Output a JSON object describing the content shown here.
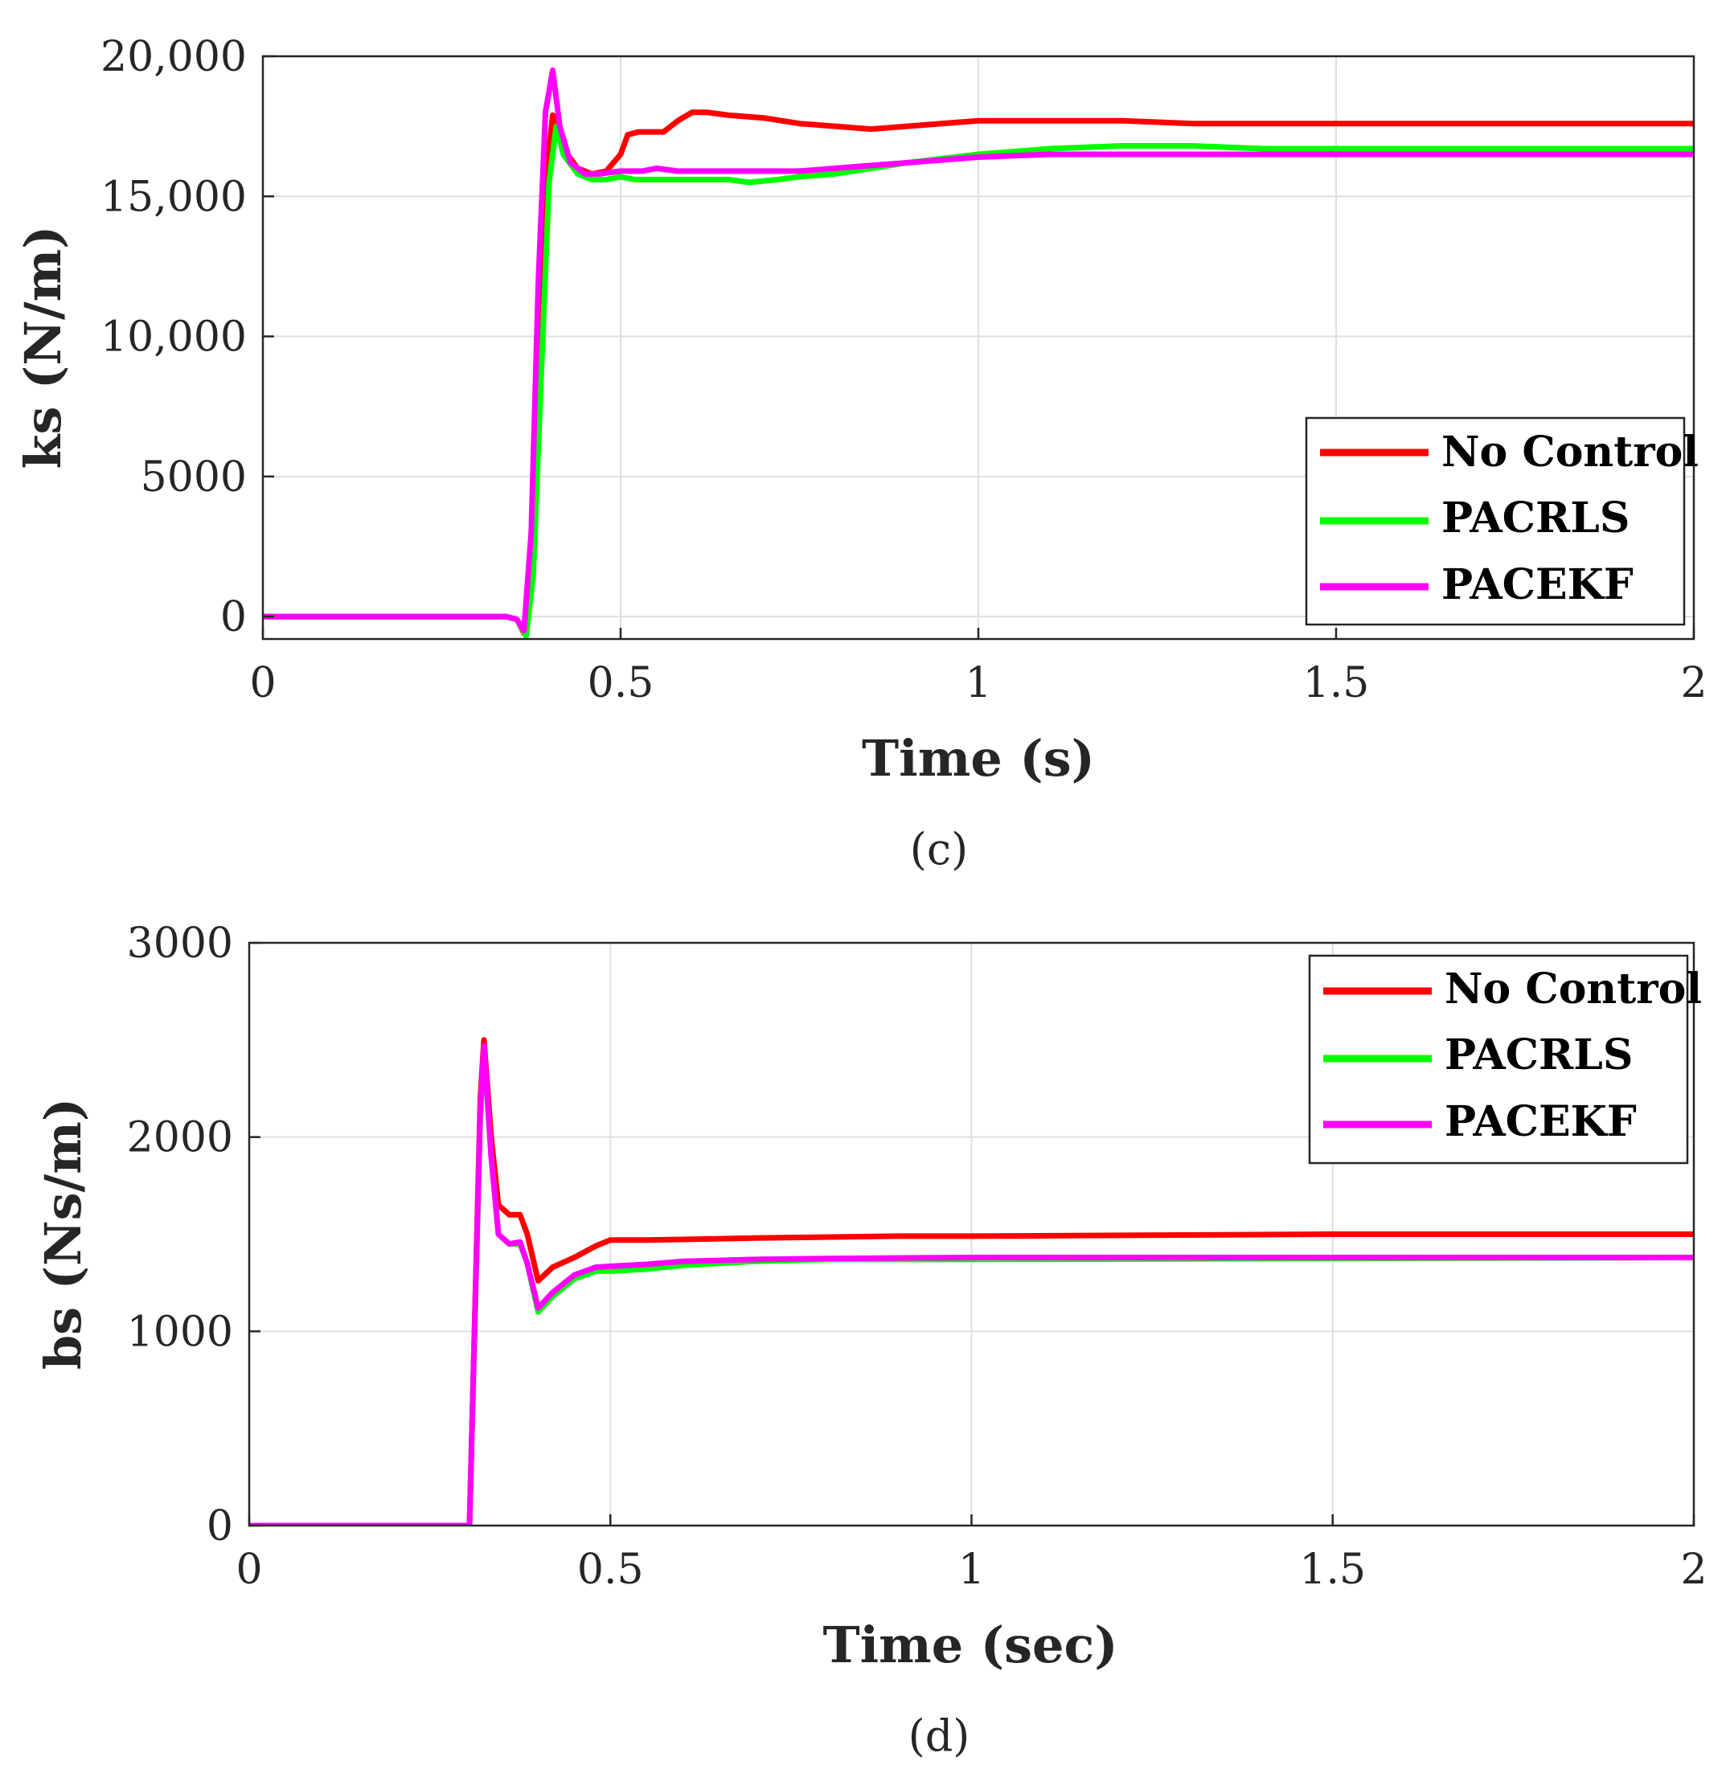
{
  "chart_data": [
    {
      "type": "line",
      "panel_label": "(c)",
      "xlabel": "Time (s)",
      "ylabel": "ks (N/m)",
      "xlim": [
        0,
        2
      ],
      "ylim": [
        -800,
        20000
      ],
      "xticks": [
        0,
        0.5,
        1,
        1.5,
        2
      ],
      "xtick_labels": [
        "0",
        "0.5",
        "1",
        "1.5",
        "2"
      ],
      "yticks": [
        0,
        5000,
        10000,
        15000,
        20000
      ],
      "ytick_labels": [
        "0",
        "5000",
        "10,000",
        "15,000",
        "20,000"
      ],
      "grid": true,
      "legend_position": "bottom-right",
      "series": [
        {
          "name": "No Control",
          "color": "#ff0000",
          "x": [
            0,
            0.34,
            0.355,
            0.365,
            0.375,
            0.385,
            0.395,
            0.405,
            0.42,
            0.44,
            0.46,
            0.48,
            0.5,
            0.51,
            0.525,
            0.55,
            0.56,
            0.58,
            0.6,
            0.62,
            0.65,
            0.7,
            0.75,
            0.8,
            0.85,
            0.9,
            1.0,
            1.05,
            1.1,
            1.2,
            1.3,
            1.4,
            1.5,
            1.7,
            2.0
          ],
          "y": [
            0,
            0,
            -100,
            -600,
            2000,
            9000,
            15500,
            17900,
            16700,
            16000,
            15800,
            15900,
            16500,
            17200,
            17300,
            17300,
            17300,
            17700,
            18000,
            18000,
            17900,
            17800,
            17600,
            17500,
            17400,
            17500,
            17700,
            17700,
            17700,
            17700,
            17600,
            17600,
            17600,
            17600,
            17600
          ]
        },
        {
          "name": "PACRLS",
          "color": "#00ff00",
          "x": [
            0,
            0.34,
            0.355,
            0.368,
            0.378,
            0.388,
            0.4,
            0.41,
            0.42,
            0.44,
            0.46,
            0.48,
            0.5,
            0.52,
            0.55,
            0.6,
            0.65,
            0.68,
            0.72,
            0.75,
            0.8,
            0.85,
            0.9,
            1.0,
            1.1,
            1.2,
            1.3,
            1.4,
            1.5,
            1.7,
            2.0
          ],
          "y": [
            0,
            0,
            -100,
            -700,
            1500,
            8000,
            15500,
            17500,
            16500,
            15800,
            15600,
            15600,
            15700,
            15600,
            15600,
            15600,
            15600,
            15500,
            15600,
            15700,
            15800,
            16000,
            16200,
            16500,
            16700,
            16800,
            16800,
            16700,
            16700,
            16700,
            16700
          ]
        },
        {
          "name": "PACEKF",
          "color": "#ff00ff",
          "x": [
            0,
            0.34,
            0.355,
            0.365,
            0.375,
            0.385,
            0.395,
            0.405,
            0.415,
            0.43,
            0.45,
            0.47,
            0.5,
            0.53,
            0.55,
            0.58,
            0.62,
            0.65,
            0.7,
            0.75,
            0.8,
            0.85,
            0.9,
            1.0,
            1.1,
            1.2,
            1.3,
            1.5,
            1.7,
            2.0
          ],
          "y": [
            0,
            0,
            -100,
            -500,
            3000,
            12000,
            18000,
            19500,
            17500,
            16200,
            15800,
            15800,
            15900,
            15900,
            16000,
            15900,
            15900,
            15900,
            15900,
            15900,
            16000,
            16100,
            16200,
            16400,
            16500,
            16500,
            16500,
            16500,
            16500,
            16500
          ]
        }
      ]
    },
    {
      "type": "line",
      "panel_label": "(d)",
      "xlabel": "Time (sec)",
      "ylabel": "bs (Ns/m)",
      "xlim": [
        0,
        2
      ],
      "ylim": [
        0,
        3000
      ],
      "xticks": [
        0,
        0.5,
        1,
        1.5,
        2
      ],
      "xtick_labels": [
        "0",
        "0.5",
        "1",
        "1.5",
        "2"
      ],
      "yticks": [
        0,
        1000,
        2000,
        3000
      ],
      "ytick_labels": [
        "0",
        "1000",
        "2000",
        "3000"
      ],
      "grid": true,
      "legend_position": "top-right",
      "series": [
        {
          "name": "No Control",
          "color": "#ff0000",
          "x": [
            0,
            0.305,
            0.32,
            0.325,
            0.335,
            0.345,
            0.36,
            0.375,
            0.385,
            0.4,
            0.42,
            0.45,
            0.48,
            0.5,
            0.55,
            0.7,
            0.9,
            1.0,
            1.5,
            2.0
          ],
          "y": [
            0,
            0,
            2200,
            2500,
            2000,
            1650,
            1600,
            1600,
            1500,
            1260,
            1330,
            1380,
            1440,
            1470,
            1470,
            1480,
            1490,
            1490,
            1500,
            1500
          ]
        },
        {
          "name": "PACRLS",
          "color": "#00ff00",
          "x": [
            0,
            0.305,
            0.32,
            0.325,
            0.335,
            0.345,
            0.36,
            0.375,
            0.385,
            0.4,
            0.42,
            0.45,
            0.48,
            0.5,
            0.55,
            0.6,
            0.7,
            0.8,
            1.0,
            1.5,
            2.0
          ],
          "y": [
            0,
            0,
            2100,
            2450,
            1900,
            1500,
            1450,
            1450,
            1350,
            1100,
            1180,
            1270,
            1310,
            1310,
            1320,
            1340,
            1360,
            1370,
            1370,
            1375,
            1380
          ]
        },
        {
          "name": "PACEKF",
          "color": "#ff00ff",
          "x": [
            0,
            0.305,
            0.32,
            0.325,
            0.335,
            0.345,
            0.36,
            0.375,
            0.385,
            0.4,
            0.42,
            0.45,
            0.48,
            0.5,
            0.55,
            0.6,
            0.7,
            0.8,
            1.0,
            1.5,
            2.0
          ],
          "y": [
            0,
            0,
            2150,
            2470,
            1900,
            1500,
            1450,
            1460,
            1350,
            1120,
            1200,
            1290,
            1330,
            1335,
            1345,
            1360,
            1370,
            1375,
            1380,
            1380,
            1380
          ]
        }
      ]
    }
  ]
}
